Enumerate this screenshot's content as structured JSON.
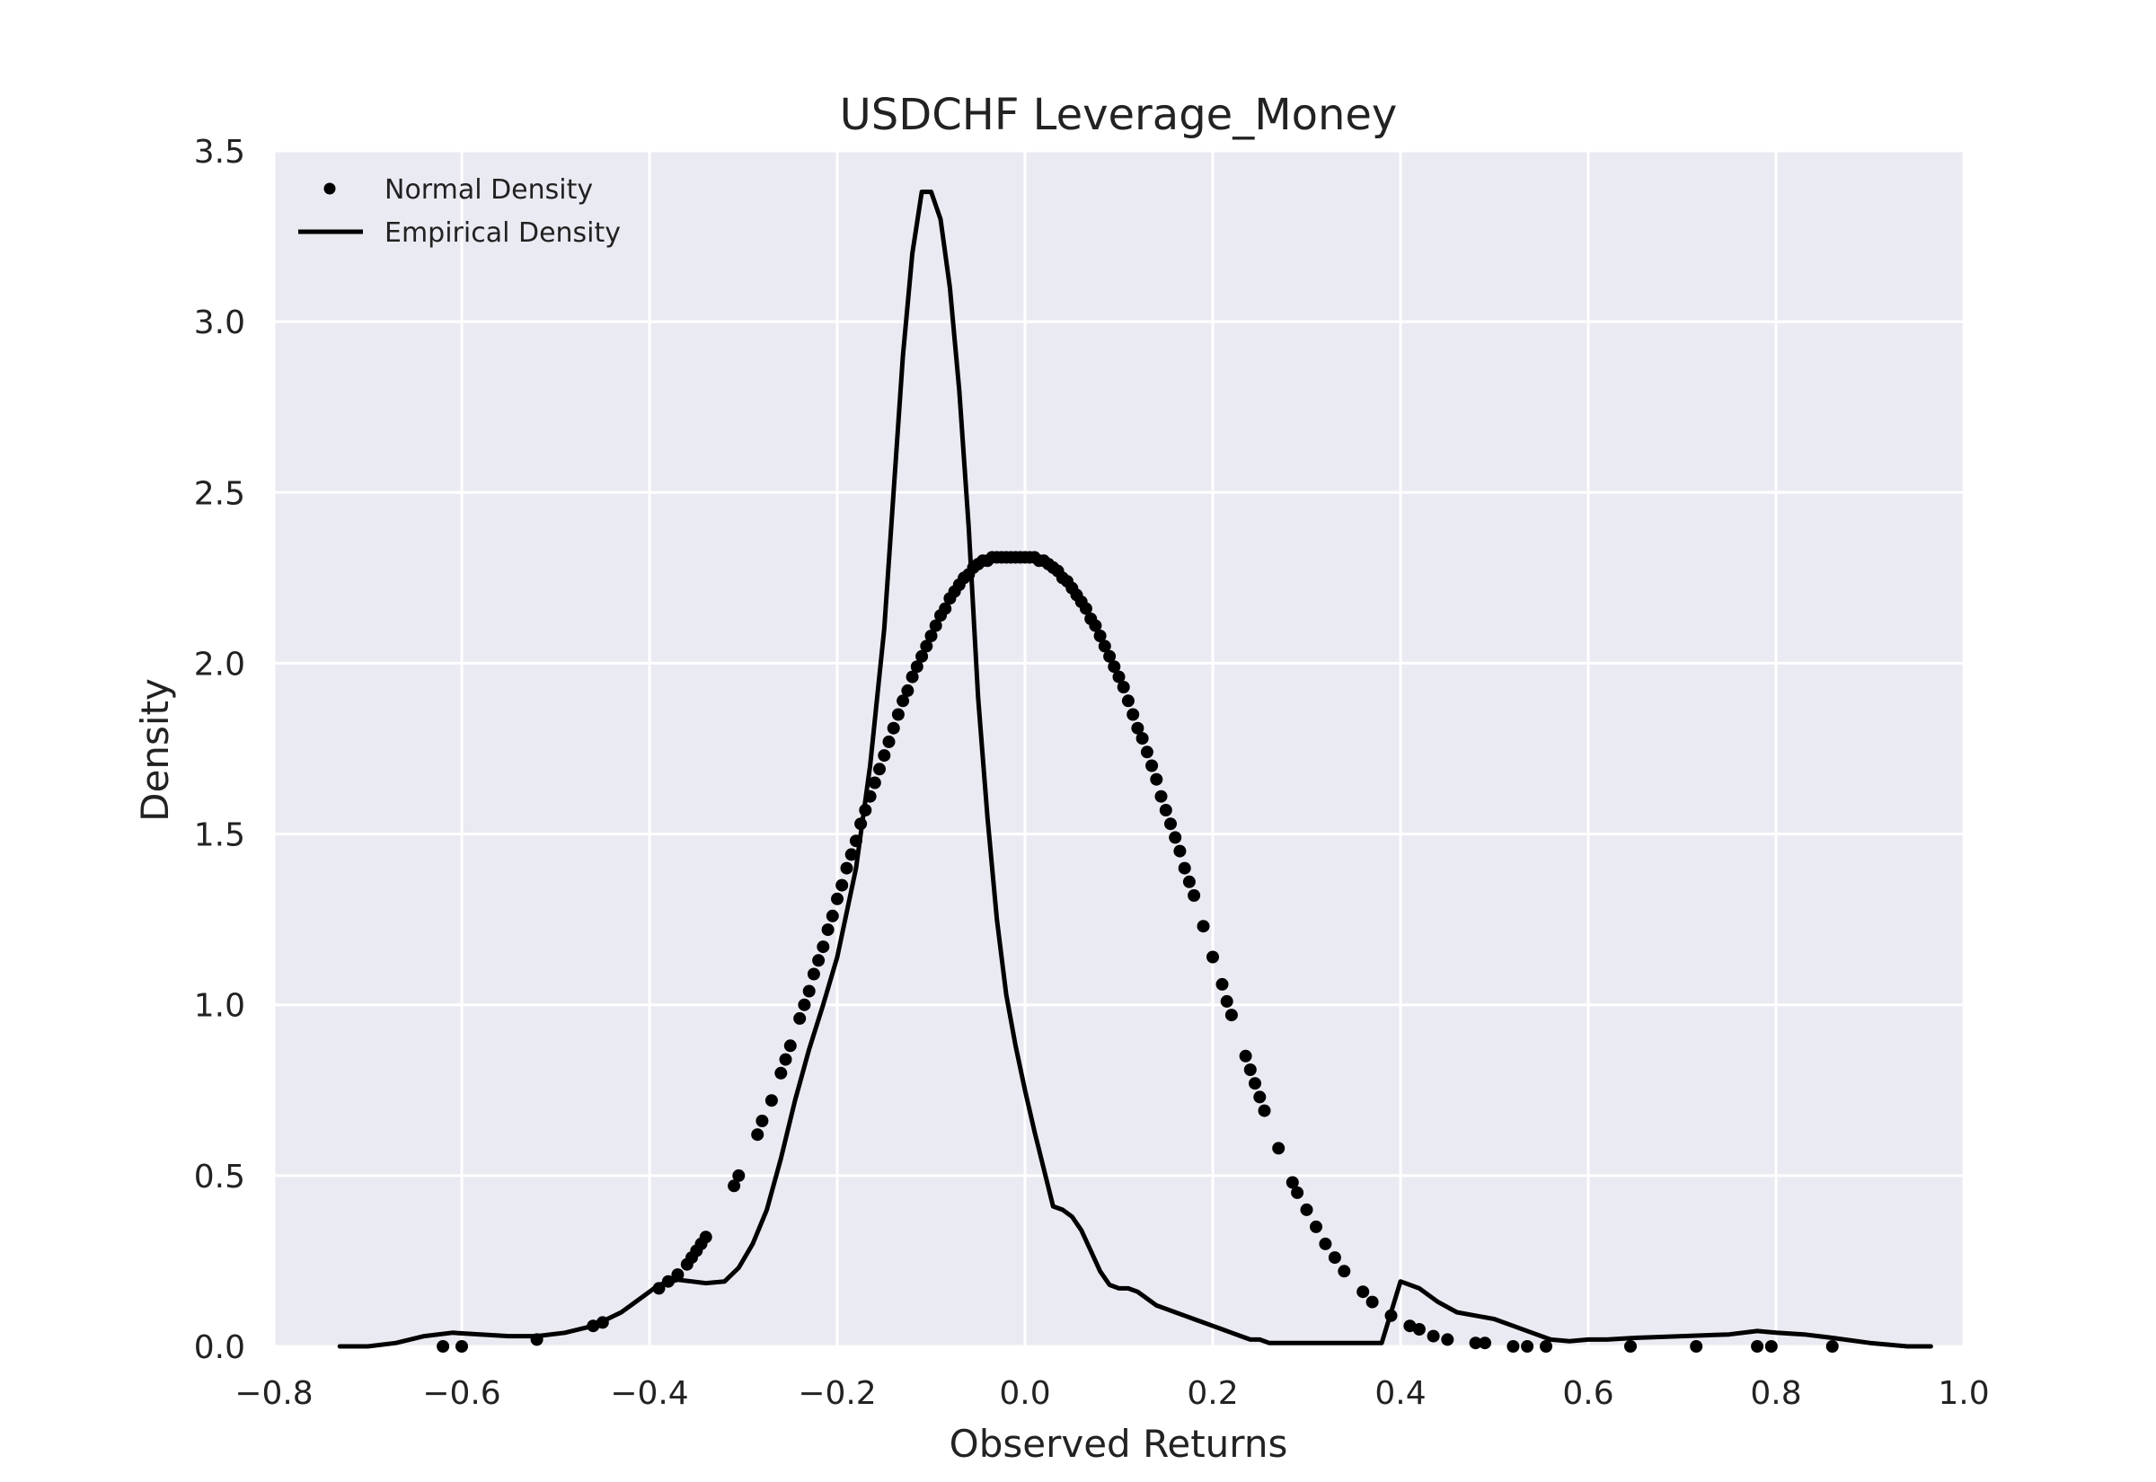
{
  "chart_data": {
    "type": "line",
    "title": "USDCHF Leverage_Money",
    "xlabel": "Observed Returns",
    "ylabel": "Density",
    "xlim": [
      -0.8,
      1.0
    ],
    "ylim": [
      0.0,
      3.5
    ],
    "xticks": [
      -0.8,
      -0.6,
      -0.4,
      -0.2,
      0.0,
      0.2,
      0.4,
      0.6,
      0.8,
      1.0
    ],
    "xtick_labels": [
      "−0.8",
      "−0.6",
      "−0.4",
      "−0.2",
      "0.0",
      "0.2",
      "0.4",
      "0.6",
      "0.8",
      "1.0"
    ],
    "yticks": [
      0.0,
      0.5,
      1.0,
      1.5,
      2.0,
      2.5,
      3.0,
      3.5
    ],
    "ytick_labels": [
      "0.0",
      "0.5",
      "1.0",
      "1.5",
      "2.0",
      "2.5",
      "3.0",
      "3.5"
    ],
    "grid": true,
    "background": "#eaeaf2",
    "grid_color": "#ffffff",
    "legend_position": "upper-left",
    "series": [
      {
        "name": "Normal Density",
        "style": "markers",
        "color": "#000000",
        "mean": 0.0,
        "std": 0.1727,
        "x": [
          -0.62,
          -0.6,
          -0.52,
          -0.46,
          -0.45,
          -0.39,
          -0.38,
          -0.37,
          -0.36,
          -0.355,
          -0.35,
          -0.345,
          -0.34,
          -0.31,
          -0.305,
          -0.285,
          -0.28,
          -0.27,
          -0.26,
          -0.255,
          -0.25,
          -0.24,
          -0.235,
          -0.23,
          -0.225,
          -0.22,
          -0.215,
          -0.21,
          -0.205,
          -0.2,
          -0.195,
          -0.19,
          -0.185,
          -0.18,
          -0.175,
          -0.17,
          -0.165,
          -0.16,
          -0.155,
          -0.15,
          -0.145,
          -0.14,
          -0.135,
          -0.13,
          -0.125,
          -0.12,
          -0.115,
          -0.11,
          -0.105,
          -0.1,
          -0.095,
          -0.09,
          -0.085,
          -0.08,
          -0.075,
          -0.07,
          -0.065,
          -0.06,
          -0.055,
          -0.05,
          -0.045,
          -0.04,
          -0.035,
          -0.03,
          -0.025,
          -0.02,
          -0.015,
          -0.01,
          -0.005,
          0.0,
          0.005,
          0.01,
          0.015,
          0.02,
          0.025,
          0.03,
          0.035,
          0.04,
          0.045,
          0.05,
          0.055,
          0.06,
          0.065,
          0.07,
          0.075,
          0.08,
          0.085,
          0.09,
          0.095,
          0.1,
          0.105,
          0.11,
          0.115,
          0.12,
          0.125,
          0.13,
          0.135,
          0.14,
          0.145,
          0.15,
          0.155,
          0.16,
          0.165,
          0.17,
          0.175,
          0.18,
          0.19,
          0.2,
          0.21,
          0.215,
          0.22,
          0.235,
          0.24,
          0.245,
          0.25,
          0.255,
          0.27,
          0.285,
          0.29,
          0.3,
          0.31,
          0.32,
          0.33,
          0.34,
          0.36,
          0.37,
          0.39,
          0.41,
          0.42,
          0.435,
          0.45,
          0.48,
          0.49,
          0.52,
          0.535,
          0.555,
          0.645,
          0.715,
          0.78,
          0.795,
          0.86
        ],
        "y": [
          0.0,
          0.0,
          0.02,
          0.06,
          0.07,
          0.17,
          0.19,
          0.21,
          0.24,
          0.26,
          0.28,
          0.3,
          0.32,
          0.47,
          0.5,
          0.62,
          0.66,
          0.72,
          0.8,
          0.84,
          0.88,
          0.96,
          1.0,
          1.04,
          1.09,
          1.13,
          1.17,
          1.22,
          1.26,
          1.31,
          1.35,
          1.4,
          1.44,
          1.48,
          1.53,
          1.57,
          1.61,
          1.65,
          1.69,
          1.73,
          1.77,
          1.81,
          1.85,
          1.89,
          1.92,
          1.96,
          1.99,
          2.02,
          2.05,
          2.08,
          2.11,
          2.14,
          2.16,
          2.19,
          2.21,
          2.23,
          2.25,
          2.26,
          2.28,
          2.29,
          2.3,
          2.3,
          2.31,
          2.31,
          2.31,
          2.31,
          2.31,
          2.31,
          2.31,
          2.31,
          2.31,
          2.31,
          2.3,
          2.3,
          2.29,
          2.28,
          2.27,
          2.25,
          2.24,
          2.22,
          2.2,
          2.18,
          2.16,
          2.13,
          2.11,
          2.08,
          2.05,
          2.02,
          1.99,
          1.96,
          1.93,
          1.89,
          1.85,
          1.81,
          1.78,
          1.74,
          1.7,
          1.66,
          1.61,
          1.57,
          1.53,
          1.49,
          1.45,
          1.4,
          1.36,
          1.32,
          1.23,
          1.14,
          1.06,
          1.01,
          0.97,
          0.85,
          0.81,
          0.77,
          0.73,
          0.69,
          0.58,
          0.48,
          0.45,
          0.4,
          0.35,
          0.3,
          0.26,
          0.22,
          0.16,
          0.13,
          0.09,
          0.06,
          0.05,
          0.03,
          0.02,
          0.01,
          0.01,
          0.0,
          0.0,
          0.0,
          0.0,
          0.0,
          0.0,
          0.0,
          0.0
        ]
      },
      {
        "name": "Empirical Density",
        "style": "line",
        "color": "#000000",
        "x": [
          -0.73,
          -0.7,
          -0.67,
          -0.64,
          -0.61,
          -0.58,
          -0.55,
          -0.52,
          -0.49,
          -0.46,
          -0.43,
          -0.41,
          -0.39,
          -0.37,
          -0.355,
          -0.34,
          -0.32,
          -0.305,
          -0.29,
          -0.275,
          -0.26,
          -0.245,
          -0.23,
          -0.215,
          -0.2,
          -0.18,
          -0.165,
          -0.15,
          -0.14,
          -0.13,
          -0.12,
          -0.11,
          -0.1,
          -0.09,
          -0.08,
          -0.07,
          -0.06,
          -0.05,
          -0.04,
          -0.03,
          -0.02,
          -0.01,
          0.0,
          0.01,
          0.02,
          0.03,
          0.04,
          0.05,
          0.06,
          0.07,
          0.08,
          0.09,
          0.1,
          0.11,
          0.12,
          0.13,
          0.14,
          0.15,
          0.16,
          0.17,
          0.18,
          0.19,
          0.2,
          0.21,
          0.22,
          0.23,
          0.24,
          0.25,
          0.26,
          0.27,
          0.28,
          0.29,
          0.3,
          0.31,
          0.32,
          0.33,
          0.34,
          0.35,
          0.36,
          0.37,
          0.38,
          0.4,
          0.42,
          0.44,
          0.46,
          0.48,
          0.5,
          0.52,
          0.54,
          0.56,
          0.58,
          0.6,
          0.62,
          0.65,
          0.7,
          0.75,
          0.78,
          0.8,
          0.83,
          0.86,
          0.9,
          0.94,
          0.965
        ],
        "y": [
          0.0,
          0.0,
          0.01,
          0.03,
          0.04,
          0.035,
          0.03,
          0.03,
          0.04,
          0.06,
          0.1,
          0.14,
          0.18,
          0.195,
          0.19,
          0.185,
          0.19,
          0.23,
          0.3,
          0.4,
          0.55,
          0.72,
          0.87,
          1.0,
          1.14,
          1.4,
          1.7,
          2.1,
          2.5,
          2.9,
          3.2,
          3.38,
          3.38,
          3.3,
          3.1,
          2.8,
          2.4,
          1.9,
          1.55,
          1.25,
          1.03,
          0.88,
          0.75,
          0.63,
          0.52,
          0.41,
          0.4,
          0.38,
          0.34,
          0.28,
          0.22,
          0.18,
          0.17,
          0.17,
          0.16,
          0.14,
          0.12,
          0.11,
          0.1,
          0.09,
          0.08,
          0.07,
          0.06,
          0.05,
          0.04,
          0.03,
          0.02,
          0.02,
          0.01,
          0.01,
          0.01,
          0.01,
          0.01,
          0.01,
          0.01,
          0.01,
          0.01,
          0.01,
          0.01,
          0.01,
          0.01,
          0.19,
          0.17,
          0.13,
          0.1,
          0.09,
          0.08,
          0.06,
          0.04,
          0.02,
          0.015,
          0.02,
          0.02,
          0.025,
          0.03,
          0.035,
          0.045,
          0.04,
          0.035,
          0.025,
          0.01,
          0.0,
          0.0
        ]
      }
    ],
    "legend": [
      {
        "label": "Normal Density",
        "marker": "dot"
      },
      {
        "label": "Empirical Density",
        "marker": "line"
      }
    ]
  }
}
